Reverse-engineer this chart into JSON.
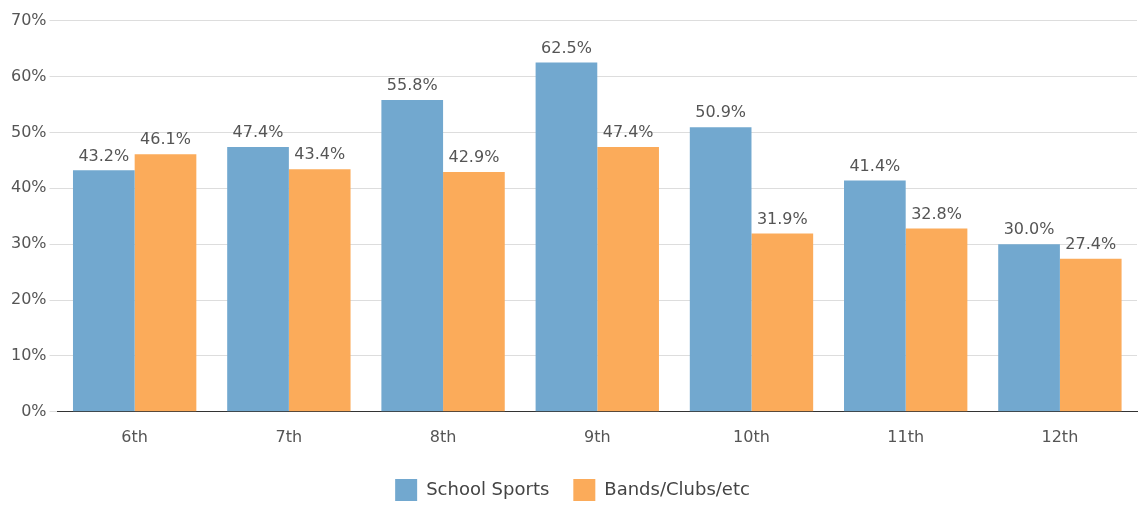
{
  "chart_data": {
    "type": "bar",
    "categories": [
      "6th",
      "7th",
      "8th",
      "9th",
      "10th",
      "11th",
      "12th"
    ],
    "series": [
      {
        "name": "School Sports",
        "color": "#72a8cf",
        "values": [
          43.2,
          47.4,
          55.8,
          62.5,
          50.9,
          41.4,
          30.0
        ],
        "value_labels": [
          "43.2%",
          "47.4%",
          "55.8%",
          "62.5%",
          "50.9%",
          "41.4%",
          "30.0%"
        ]
      },
      {
        "name": "Bands/Clubs/etc",
        "color": "#fbab5a",
        "values": [
          46.1,
          43.4,
          42.9,
          47.4,
          31.9,
          32.8,
          27.4
        ],
        "value_labels": [
          "46.1%",
          "43.4%",
          "42.9%",
          "47.4%",
          "31.9%",
          "32.8%",
          "27.4%"
        ]
      }
    ],
    "ylim": [
      0,
      70
    ],
    "yticks": [
      {
        "value": 0,
        "label": "0%"
      },
      {
        "value": 10,
        "label": "10%"
      },
      {
        "value": 20,
        "label": "20%"
      },
      {
        "value": 30,
        "label": "30%"
      },
      {
        "value": 40,
        "label": "40%"
      },
      {
        "value": 50,
        "label": "50%"
      },
      {
        "value": 60,
        "label": "60%"
      },
      {
        "value": 70,
        "label": "70%"
      }
    ],
    "grid": "y",
    "legend": "bottom"
  }
}
